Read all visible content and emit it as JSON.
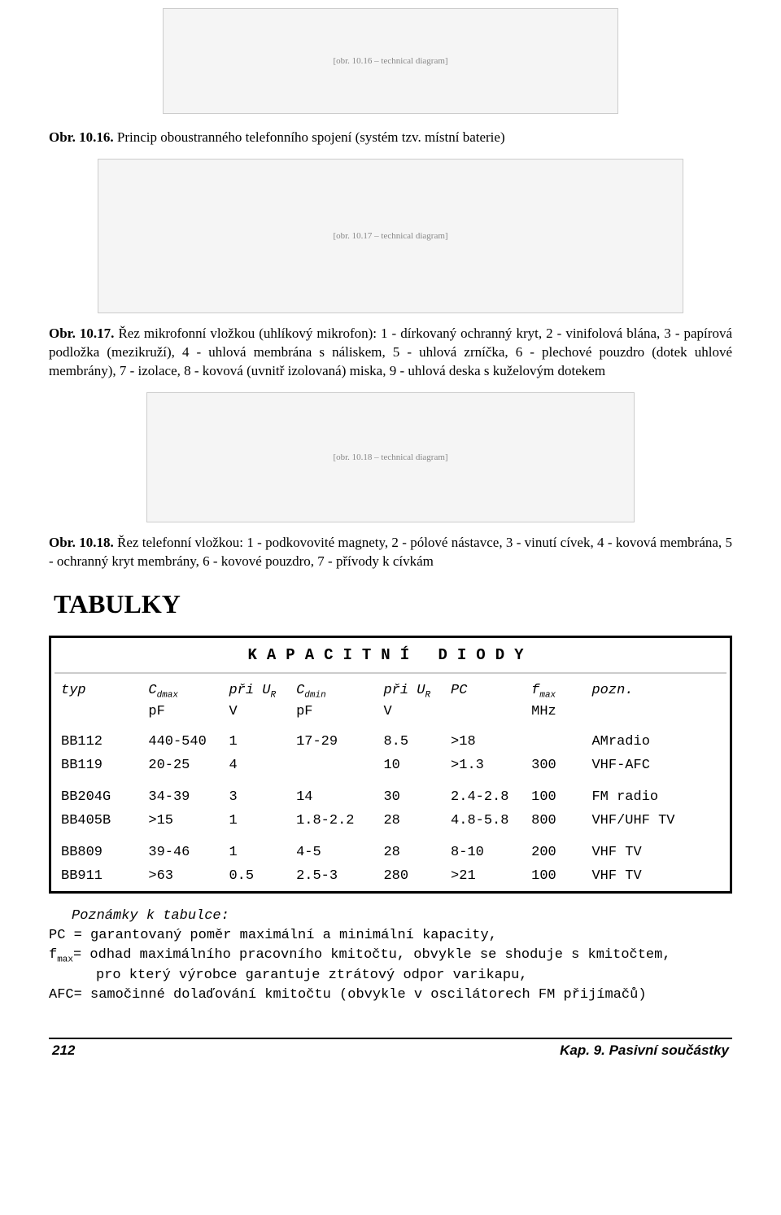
{
  "fig1": {
    "caption_bold": "Obr. 10.16.",
    "caption_text": " Princip oboustranného telefonního spojení (systém tzv. místní baterie)"
  },
  "fig2": {
    "caption_bold": "Obr. 10.17.",
    "caption_text": " Řez mikrofonní vložkou (uhlíkový mikrofon): 1 - dírkovaný ochranný kryt, 2 - vinifolová blána, 3 - papírová podložka (mezikruží), 4 - uhlová membrána s náliskem, 5 - uhlová zrníčka, 6 - plechové pouzdro (dotek uhlové membrány), 7 - izolace, 8 - kovová (uvnitř izolovaná) miska, 9 - uhlová deska s kuželovým dotekem"
  },
  "fig3": {
    "caption_bold": "Obr. 10.18.",
    "caption_text": " Řez telefonní vložkou: 1 - podkovovité magnety, 2 - pólové nástavce, 3 - vinutí cívek, 4 - kovová membrána, 5 - ochranný kryt membrány, 6 - kovové pouzdro, 7 - přívody k cívkám"
  },
  "section_title": "TABULKY",
  "table": {
    "title": "KAPACITNÍ DIODY",
    "headers1": {
      "typ": "typ",
      "cdmax_pre": "C",
      "cdmax_sub": "dmax",
      "ur1_pre": "při U",
      "ur1_sub": "R",
      "cdmin_pre": "C",
      "cdmin_sub": "dmin",
      "ur2_pre": "při U",
      "ur2_sub": "R",
      "pc": "PC",
      "fmax_pre": "f",
      "fmax_sub": "max",
      "pozn": "pozn."
    },
    "headers2": {
      "cdmax": "pF",
      "ur1": "V",
      "cdmin": "pF",
      "ur2": "V",
      "fmax": "MHz"
    },
    "rows": [
      {
        "typ": "BB112",
        "cdmax": "440-540",
        "ur1": "1",
        "cdmin": "17-29",
        "ur2": "8.5",
        "pc": ">18",
        "fmax": "",
        "pozn": "AMradio"
      },
      {
        "typ": "BB119",
        "cdmax": "20-25",
        "ur1": "4",
        "cdmin": "",
        "ur2": "10",
        "pc": ">1.3",
        "fmax": "300",
        "pozn": "VHF-AFC"
      },
      {
        "typ": "BB204G",
        "cdmax": "34-39",
        "ur1": "3",
        "cdmin": "14",
        "ur2": "30",
        "pc": "2.4-2.8",
        "fmax": "100",
        "pozn": "FM radio"
      },
      {
        "typ": "BB405B",
        "cdmax": ">15",
        "ur1": "1",
        "cdmin": "1.8-2.2",
        "ur2": "28",
        "pc": "4.8-5.8",
        "fmax": "800",
        "pozn": "VHF/UHF TV"
      },
      {
        "typ": "BB809",
        "cdmax": "39-46",
        "ur1": "1",
        "cdmin": "4-5",
        "ur2": "28",
        "pc": "8-10",
        "fmax": "200",
        "pozn": "VHF TV"
      },
      {
        "typ": "BB911",
        "cdmax": ">63",
        "ur1": "0.5",
        "cdmin": "2.5-3",
        "ur2": "280",
        "pc": ">21",
        "fmax": "100",
        "pozn": "VHF TV"
      }
    ]
  },
  "notes": {
    "title": "Poznámky k tabulce:",
    "l1": "PC = garantovaný poměr maximální a minimální kapacity,",
    "l2a_pre": "f",
    "l2a_sub": "max",
    "l2a_post": "= odhad maximálního pracovního kmitočtu, obvykle se shoduje s kmitočtem,",
    "l2b": "pro který výrobce garantuje ztrátový odpor varikapu,",
    "l3": "AFC= samočinné dolaďování kmitočtu (obvykle v  oscilátorech FM přijímačů)"
  },
  "footer": {
    "page": "212",
    "chapter": "Kap. 9. Pasivní součástky"
  }
}
